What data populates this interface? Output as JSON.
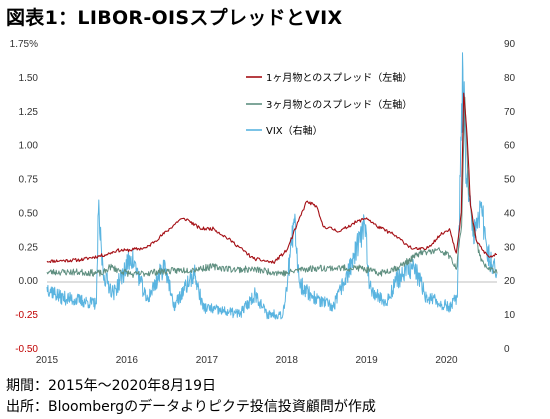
{
  "title": "図表1：LIBOR-OISスプレッドとVIX",
  "notes": {
    "period": "期間：2015年～2020年8月19日",
    "source": "出所：Bloombergのデータよりピクテ投信投資顧問が作成"
  },
  "chart_data": {
    "type": "line",
    "x_axis": {
      "type": "date",
      "ticks": [
        "2015",
        "2016",
        "2017",
        "2018",
        "2019",
        "2020"
      ],
      "range": [
        "2015-01-01",
        "2020-08-19"
      ]
    },
    "y_left": {
      "ticks": [
        "1.75%",
        "1.50",
        "1.25",
        "1.00",
        "0.75",
        "0.50",
        "0.25",
        "0.00",
        "-0.25",
        "-0.50"
      ],
      "range": [
        -0.5,
        1.75
      ],
      "negative_ticks_color": "#c00000"
    },
    "y_right": {
      "ticks": [
        "90",
        "80",
        "70",
        "60",
        "50",
        "40",
        "30",
        "20",
        "10",
        "0"
      ],
      "range": [
        0,
        90
      ]
    },
    "grid": false,
    "legend_position": "top-right",
    "series": [
      {
        "name": "1ヶ月物とのスプレッド（左軸）",
        "axis": "left",
        "color": "#a50f15",
        "points": [
          [
            "2015-01-01",
            0.14
          ],
          [
            "2015-06-01",
            0.15
          ],
          [
            "2015-10-01",
            0.19
          ],
          [
            "2015-11-15",
            0.22
          ],
          [
            "2016-01-01",
            0.22
          ],
          [
            "2016-04-01",
            0.24
          ],
          [
            "2016-07-01",
            0.36
          ],
          [
            "2016-09-01",
            0.45
          ],
          [
            "2016-10-01",
            0.45
          ],
          [
            "2016-12-01",
            0.38
          ],
          [
            "2017-02-01",
            0.38
          ],
          [
            "2017-05-01",
            0.28
          ],
          [
            "2017-08-01",
            0.16
          ],
          [
            "2017-11-01",
            0.13
          ],
          [
            "2018-01-01",
            0.22
          ],
          [
            "2018-02-15",
            0.4
          ],
          [
            "2018-04-01",
            0.58
          ],
          [
            "2018-05-15",
            0.55
          ],
          [
            "2018-06-15",
            0.4
          ],
          [
            "2018-09-01",
            0.36
          ],
          [
            "2018-11-01",
            0.42
          ],
          [
            "2019-01-01",
            0.46
          ],
          [
            "2019-02-15",
            0.4
          ],
          [
            "2019-05-01",
            0.34
          ],
          [
            "2019-08-01",
            0.23
          ],
          [
            "2019-10-01",
            0.23
          ],
          [
            "2019-12-01",
            0.33
          ],
          [
            "2020-01-15",
            0.38
          ],
          [
            "2020-02-15",
            0.2
          ],
          [
            "2020-03-09",
            0.5
          ],
          [
            "2020-03-20",
            1.38
          ],
          [
            "2020-04-05",
            1.05
          ],
          [
            "2020-04-20",
            0.55
          ],
          [
            "2020-05-15",
            0.3
          ],
          [
            "2020-06-15",
            0.22
          ],
          [
            "2020-07-15",
            0.17
          ],
          [
            "2020-08-19",
            0.19
          ]
        ]
      },
      {
        "name": "3ヶ月物とのスプレッド（左軸）",
        "axis": "left",
        "color": "#5f8f80",
        "points": [
          [
            "2015-01-01",
            0.06
          ],
          [
            "2015-06-01",
            0.06
          ],
          [
            "2015-09-15",
            0.05
          ],
          [
            "2015-10-15",
            0.1
          ],
          [
            "2015-12-01",
            0.07
          ],
          [
            "2016-02-01",
            0.04
          ],
          [
            "2016-05-01",
            0.06
          ],
          [
            "2016-08-01",
            0.07
          ],
          [
            "2016-11-01",
            0.08
          ],
          [
            "2017-02-01",
            0.1
          ],
          [
            "2017-05-01",
            0.08
          ],
          [
            "2017-08-01",
            0.08
          ],
          [
            "2017-11-01",
            0.06
          ],
          [
            "2018-01-01",
            0.05
          ],
          [
            "2018-03-01",
            0.08
          ],
          [
            "2018-06-01",
            0.09
          ],
          [
            "2018-09-01",
            0.09
          ],
          [
            "2018-12-01",
            0.09
          ],
          [
            "2019-03-01",
            0.05
          ],
          [
            "2019-06-01",
            0.1
          ],
          [
            "2019-09-01",
            0.2
          ],
          [
            "2019-12-01",
            0.22
          ],
          [
            "2020-01-15",
            0.18
          ],
          [
            "2020-02-15",
            0.08
          ],
          [
            "2020-03-10",
            0.4
          ],
          [
            "2020-03-25",
            1.35
          ],
          [
            "2020-04-10",
            0.7
          ],
          [
            "2020-05-01",
            0.4
          ],
          [
            "2020-06-01",
            0.18
          ],
          [
            "2020-07-01",
            0.1
          ],
          [
            "2020-08-19",
            0.05
          ]
        ]
      },
      {
        "name": "VIX（右軸）",
        "axis": "right",
        "color": "#5ab4e0",
        "points": [
          [
            "2015-01-01",
            18
          ],
          [
            "2015-03-01",
            15
          ],
          [
            "2015-06-01",
            14
          ],
          [
            "2015-08-15",
            13
          ],
          [
            "2015-08-24",
            40
          ],
          [
            "2015-09-15",
            22
          ],
          [
            "2015-11-01",
            16
          ],
          [
            "2016-01-20",
            27
          ],
          [
            "2016-02-15",
            23
          ],
          [
            "2016-04-01",
            14
          ],
          [
            "2016-06-24",
            25
          ],
          [
            "2016-08-01",
            12
          ],
          [
            "2016-11-04",
            22
          ],
          [
            "2016-12-15",
            12
          ],
          [
            "2017-03-01",
            11
          ],
          [
            "2017-06-01",
            10
          ],
          [
            "2017-08-10",
            16
          ],
          [
            "2017-10-01",
            10
          ],
          [
            "2017-12-15",
            10
          ],
          [
            "2018-02-05",
            37
          ],
          [
            "2018-03-01",
            19
          ],
          [
            "2018-05-01",
            15
          ],
          [
            "2018-08-01",
            12
          ],
          [
            "2018-10-25",
            25
          ],
          [
            "2018-12-24",
            36
          ],
          [
            "2019-01-15",
            18
          ],
          [
            "2019-04-01",
            13
          ],
          [
            "2019-05-15",
            20
          ],
          [
            "2019-08-05",
            24
          ],
          [
            "2019-10-01",
            15
          ],
          [
            "2020-01-15",
            12
          ],
          [
            "2020-02-20",
            15
          ],
          [
            "2020-03-16",
            82
          ],
          [
            "2020-04-01",
            50
          ],
          [
            "2020-05-01",
            33
          ],
          [
            "2020-06-11",
            40
          ],
          [
            "2020-07-15",
            26
          ],
          [
            "2020-08-19",
            22
          ]
        ]
      }
    ]
  }
}
